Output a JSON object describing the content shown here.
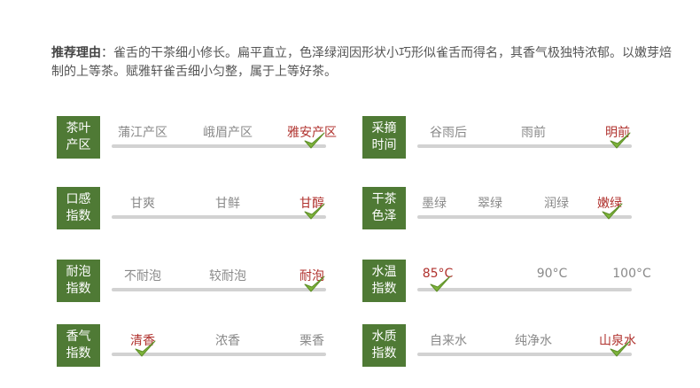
{
  "intro": {
    "lead": "推荐理由",
    "sep": "：",
    "body": "雀舌的干茶细小修长。扁平直立，色泽绿润因形状小巧形似雀舌而得名，其香气极独特浓郁。以嫩芽焙制的上等茶。赋雅轩雀舌细小匀整，属于上等好茶。"
  },
  "colors": {
    "tag_bg": "#4f7a35",
    "selected_text": "#b0322e",
    "check": "#7db33a",
    "track": "#d2d2d2"
  },
  "attributes": [
    {
      "id": "origin",
      "label1": "茶叶",
      "label2": "产区",
      "options": [
        "蒲江产区",
        "峨眉产区",
        "雅安产区"
      ],
      "selected": 2
    },
    {
      "id": "picking",
      "label1": "采摘",
      "label2": "时间",
      "options": [
        "谷雨后",
        "雨前",
        "明前"
      ],
      "selected": 2
    },
    {
      "id": "taste",
      "label1": "口感",
      "label2": "指数",
      "options": [
        "甘爽",
        "甘鲜",
        "甘醇"
      ],
      "selected": 2
    },
    {
      "id": "color",
      "label1": "干茶",
      "label2": "色泽",
      "options": [
        "墨绿",
        "翠绿",
        "润绿",
        "嫩绿"
      ],
      "selected": 3
    },
    {
      "id": "brewing",
      "label1": "耐泡",
      "label2": "指数",
      "options": [
        "不耐泡",
        "较耐泡",
        "耐泡"
      ],
      "selected": 2
    },
    {
      "id": "temperature",
      "label1": "水温",
      "label2": "指数",
      "options": [
        "85°C",
        "90°C",
        "100°C"
      ],
      "selected": 0
    },
    {
      "id": "aroma",
      "label1": "香气",
      "label2": "指数",
      "options": [
        "清香",
        "浓香",
        "栗香"
      ],
      "selected": 0
    },
    {
      "id": "water",
      "label1": "水质",
      "label2": "指数",
      "options": [
        "自来水",
        "纯净水",
        "山泉水"
      ],
      "selected": 2
    }
  ]
}
